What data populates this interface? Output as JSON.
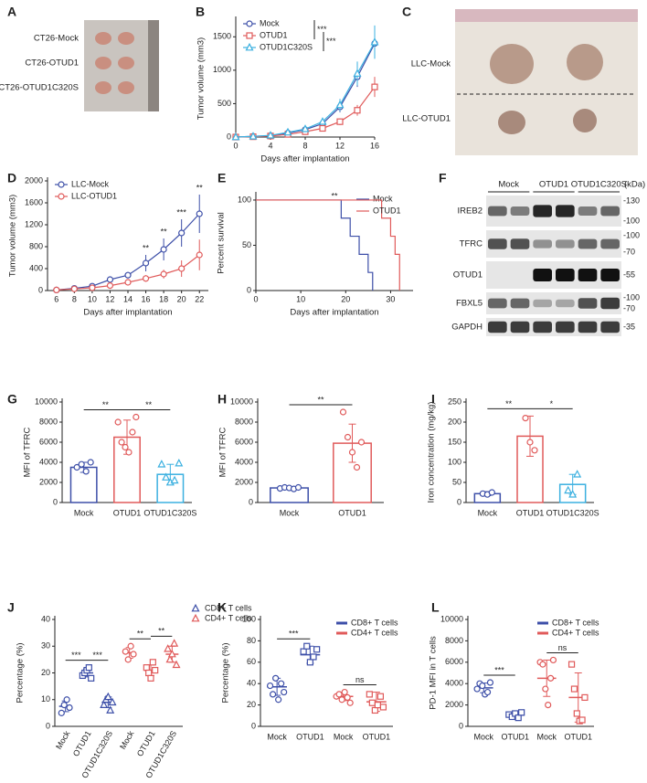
{
  "images": [
    {
      "panel": "A",
      "labels": [
        "CT26-Mock",
        "CT26-OTUD1",
        "CT26-OTUD1C320S"
      ]
    },
    {
      "panel": "C",
      "labels": [
        "LLC-Mock",
        "LLC-OTUD1"
      ]
    },
    {
      "panel": "F",
      "lanes": [
        "Mock",
        "OTUD1",
        "OTUD1C320S"
      ],
      "unit": "(kDa)",
      "rows": [
        {
          "label": "IREB2",
          "markers": [
            "-130",
            "-100"
          ]
        },
        {
          "label": "TFRC",
          "markers": [
            "-100",
            "-70"
          ]
        },
        {
          "label": "OTUD1",
          "markers": [
            "-55"
          ]
        },
        {
          "label": "FBXL5",
          "markers": [
            "-100",
            "-70"
          ]
        },
        {
          "label": "GAPDH",
          "markers": [
            "-35"
          ]
        }
      ]
    }
  ],
  "chart_data": [
    {
      "type": "line",
      "panel": "B",
      "xlabel": "Days after implantation",
      "ylabel": "Tumor volume (mm3)",
      "x": [
        0,
        2,
        4,
        6,
        8,
        10,
        12,
        14,
        16
      ],
      "xlim": [
        0,
        16
      ],
      "xticks": [
        0,
        4,
        8,
        12,
        16
      ],
      "ylim": [
        0,
        1750
      ],
      "yticks": [
        0,
        500,
        1000,
        1500
      ],
      "legend": "upper left",
      "series": [
        {
          "name": "Mock",
          "color": "#3d4fa8",
          "marker": "circle",
          "values": [
            0,
            10,
            20,
            60,
            110,
            200,
            450,
            900,
            1400
          ],
          "errors": [
            0,
            5,
            5,
            15,
            20,
            40,
            80,
            150,
            110
          ]
        },
        {
          "name": "OTUD1",
          "color": "#e05a5a",
          "marker": "square",
          "values": [
            0,
            5,
            15,
            40,
            80,
            130,
            230,
            400,
            750
          ],
          "errors": [
            0,
            3,
            5,
            10,
            15,
            25,
            50,
            80,
            150
          ]
        },
        {
          "name": "OTUD1C320S",
          "color": "#3bb0e0",
          "marker": "triangle",
          "values": [
            0,
            10,
            25,
            70,
            120,
            230,
            480,
            950,
            1420
          ],
          "errors": [
            0,
            5,
            8,
            15,
            25,
            45,
            90,
            180,
            250
          ]
        }
      ],
      "annotations": [
        {
          "text": "***",
          "series": [
            0,
            1
          ]
        },
        {
          "text": "***",
          "series": [
            1,
            2
          ]
        }
      ]
    },
    {
      "type": "line",
      "panel": "D",
      "xlabel": "Days after implantation",
      "ylabel": "Tumor volume (mm3)",
      "x": [
        6,
        8,
        10,
        12,
        14,
        16,
        18,
        20,
        22
      ],
      "xlim": [
        5,
        23
      ],
      "xticks": [
        6,
        8,
        10,
        12,
        14,
        16,
        18,
        20,
        22
      ],
      "ylim": [
        0,
        2000
      ],
      "yticks": [
        0,
        400,
        800,
        1200,
        1600,
        2000
      ],
      "legend": "upper left",
      "series": [
        {
          "name": "LLC-Mock",
          "color": "#3d4fa8",
          "marker": "circle",
          "values": [
            10,
            40,
            80,
            200,
            280,
            500,
            750,
            1050,
            1400
          ],
          "errors": [
            5,
            10,
            20,
            40,
            60,
            150,
            200,
            250,
            350
          ]
        },
        {
          "name": "LLC-OTUD1",
          "color": "#e05a5a",
          "marker": "circle",
          "values": [
            10,
            30,
            50,
            90,
            150,
            220,
            300,
            400,
            650
          ],
          "errors": [
            5,
            10,
            15,
            30,
            40,
            60,
            80,
            150,
            280
          ]
        }
      ],
      "annotations": [
        {
          "text": "**",
          "x": 16
        },
        {
          "text": "**",
          "x": 18
        },
        {
          "text": "***",
          "x": 20
        },
        {
          "text": "**",
          "x": 22
        }
      ]
    },
    {
      "type": "step",
      "panel": "E",
      "xlabel": "Days after implantation",
      "ylabel": "Percent survival",
      "xlim": [
        0,
        35
      ],
      "xticks": [
        0,
        10,
        20,
        30
      ],
      "ylim": [
        0,
        105
      ],
      "yticks": [
        0,
        50,
        100
      ],
      "legend": "upper right",
      "series": [
        {
          "name": "Mock",
          "color": "#3d4fa8",
          "x": [
            0,
            19,
            21,
            23,
            25,
            26
          ],
          "values": [
            100,
            80,
            60,
            40,
            20,
            0
          ]
        },
        {
          "name": "OTUD1",
          "color": "#e05a5a",
          "x": [
            0,
            28,
            30,
            31,
            32
          ],
          "values": [
            100,
            80,
            60,
            40,
            0
          ]
        }
      ],
      "annotations": [
        {
          "text": "**"
        }
      ]
    },
    {
      "type": "bar",
      "panel": "G",
      "ylabel": "MFI of TFRC",
      "categories": [
        "Mock",
        "OTUD1",
        "OTUD1C320S"
      ],
      "colors": [
        "#3d4fa8",
        "#e05a5a",
        "#3bb0e0"
      ],
      "markers": [
        "circle",
        "circle",
        "triangle"
      ],
      "ylim": [
        0,
        10000
      ],
      "yticks": [
        0,
        2000,
        4000,
        6000,
        8000,
        10000
      ],
      "values": [
        3500,
        6500,
        2800
      ],
      "errors": [
        500,
        1700,
        1000
      ],
      "points": [
        [
          3500,
          3800,
          3100,
          4000
        ],
        [
          8000,
          6000,
          5500,
          5000,
          7000,
          8500
        ],
        [
          3800,
          2500,
          2000,
          2200,
          3900
        ]
      ],
      "annotations": [
        {
          "text": "**",
          "groups": [
            0,
            1
          ]
        },
        {
          "text": "**",
          "groups": [
            1,
            2
          ]
        }
      ]
    },
    {
      "type": "bar",
      "panel": "H",
      "ylabel": "MFI of TFRC",
      "categories": [
        "Mock",
        "OTUD1"
      ],
      "colors": [
        "#3d4fa8",
        "#e05a5a"
      ],
      "markers": [
        "circle",
        "circle"
      ],
      "ylim": [
        0,
        10000
      ],
      "yticks": [
        0,
        2000,
        4000,
        6000,
        8000,
        10000
      ],
      "values": [
        1450,
        5900
      ],
      "errors": [
        80,
        1900
      ],
      "points": [
        [
          1400,
          1500,
          1450,
          1350,
          1500
        ],
        [
          9000,
          6500,
          5000,
          3500,
          6000
        ]
      ],
      "annotations": [
        {
          "text": "**",
          "groups": [
            0,
            1
          ]
        }
      ]
    },
    {
      "type": "bar",
      "panel": "I",
      "ylabel": "Iron concentration (mg/kg)",
      "categories": [
        "Mock",
        "OTUD1",
        "OTUD1C320S"
      ],
      "colors": [
        "#3d4fa8",
        "#e05a5a",
        "#3bb0e0"
      ],
      "markers": [
        "circle",
        "circle",
        "triangle"
      ],
      "ylim": [
        0,
        250
      ],
      "yticks": [
        0,
        50,
        100,
        150,
        200,
        250
      ],
      "values": [
        22,
        165,
        45
      ],
      "errors": [
        5,
        50,
        25
      ],
      "points": [
        [
          22,
          20,
          25
        ],
        [
          210,
          150,
          130
        ],
        [
          30,
          20,
          70
        ]
      ],
      "annotations": [
        {
          "text": "**",
          "groups": [
            0,
            1
          ]
        },
        {
          "text": "*",
          "groups": [
            1,
            2
          ]
        }
      ]
    },
    {
      "type": "dot",
      "panel": "J",
      "ylabel": "Percentage (%)",
      "rotate_labels": true,
      "categories": [
        "Mock",
        "OTUD1",
        "OTUD1C320S",
        "Mock",
        "OTUD1",
        "OTUD1C320S"
      ],
      "colors": [
        "#3d4fa8",
        "#3d4fa8",
        "#3d4fa8",
        "#e05a5a",
        "#e05a5a",
        "#e05a5a"
      ],
      "markers": [
        "circle",
        "square",
        "triangle",
        "circle",
        "square",
        "triangle"
      ],
      "ylim": [
        0,
        40
      ],
      "yticks": [
        0,
        10,
        20,
        30,
        40
      ],
      "legend": "right",
      "legend_entries": [
        {
          "name": "CD8+ T cells",
          "color": "#3d4fa8",
          "marker": "triangle"
        },
        {
          "name": "CD4+ T cells",
          "color": "#e05a5a",
          "marker": "triangle"
        }
      ],
      "values": [
        7.5,
        20,
        9,
        27.5,
        21,
        27
      ],
      "errors": [
        2,
        1.5,
        2,
        2,
        2,
        3
      ],
      "points": [
        [
          5,
          8,
          10,
          7
        ],
        [
          19,
          20,
          21,
          22,
          18
        ],
        [
          8,
          10,
          11,
          6,
          9
        ],
        [
          28,
          25,
          30,
          27
        ],
        [
          22,
          20,
          18,
          24,
          21
        ],
        [
          29,
          25,
          27,
          31,
          23
        ]
      ],
      "annotations": [
        {
          "text": "***",
          "groups": [
            0,
            1
          ]
        },
        {
          "text": "***",
          "groups": [
            1,
            2
          ]
        },
        {
          "text": "**",
          "groups": [
            3,
            4
          ]
        },
        {
          "text": "**",
          "groups": [
            4,
            5
          ]
        }
      ]
    },
    {
      "type": "dot",
      "panel": "K",
      "ylabel": "Percentage (%)",
      "categories": [
        "Mock",
        "OTUD1",
        "Mock",
        "OTUD1"
      ],
      "colors": [
        "#3d4fa8",
        "#3d4fa8",
        "#e05a5a",
        "#e05a5a"
      ],
      "markers": [
        "circle",
        "square",
        "circle",
        "square"
      ],
      "ylim": [
        0,
        100
      ],
      "yticks": [
        0,
        20,
        40,
        60,
        80,
        100
      ],
      "legend": "upper right",
      "legend_entries": [
        {
          "name": "CD8+ T cells",
          "color": "#3d4fa8",
          "marker": "bar"
        },
        {
          "name": "CD4+ T cells",
          "color": "#e05a5a",
          "marker": "bar"
        }
      ],
      "values": [
        37,
        67,
        28,
        23
      ],
      "errors": [
        8,
        8,
        4,
        9
      ],
      "points": [
        [
          38,
          30,
          45,
          25,
          40,
          32
        ],
        [
          70,
          75,
          60,
          65,
          72
        ],
        [
          28,
          30,
          25,
          32,
          27,
          22
        ],
        [
          30,
          22,
          15,
          20,
          28,
          18
        ]
      ],
      "annotations": [
        {
          "text": "***",
          "groups": [
            0,
            1
          ]
        },
        {
          "text": "ns",
          "groups": [
            2,
            3
          ]
        }
      ]
    },
    {
      "type": "dot",
      "panel": "L",
      "ylabel": "PD-1 MFI in  T cells",
      "categories": [
        "Mock",
        "OTUD1",
        "Mock",
        "OTUD1"
      ],
      "colors": [
        "#3d4fa8",
        "#3d4fa8",
        "#e05a5a",
        "#e05a5a"
      ],
      "markers": [
        "circle",
        "square",
        "circle",
        "square"
      ],
      "ylim": [
        0,
        10000
      ],
      "yticks": [
        0,
        2000,
        4000,
        6000,
        8000,
        10000
      ],
      "legend": "upper right",
      "legend_entries": [
        {
          "name": "CD8+ T cells",
          "color": "#3d4fa8",
          "marker": "bar"
        },
        {
          "name": "CD4+ T cells",
          "color": "#e05a5a",
          "marker": "bar"
        }
      ],
      "values": [
        3600,
        1050,
        4500,
        2700
      ],
      "errors": [
        450,
        250,
        1700,
        2300
      ],
      "points": [
        [
          3500,
          4000,
          3800,
          3000,
          3200,
          4100
        ],
        [
          1100,
          900,
          1200,
          800,
          1300
        ],
        [
          6000,
          5800,
          3500,
          2000,
          4500,
          6200
        ],
        [
          5800,
          3500,
          1200,
          500,
          600,
          2700
        ]
      ],
      "annotations": [
        {
          "text": "***",
          "groups": [
            0,
            1
          ]
        },
        {
          "text": "ns",
          "groups": [
            2,
            3
          ]
        }
      ]
    }
  ]
}
